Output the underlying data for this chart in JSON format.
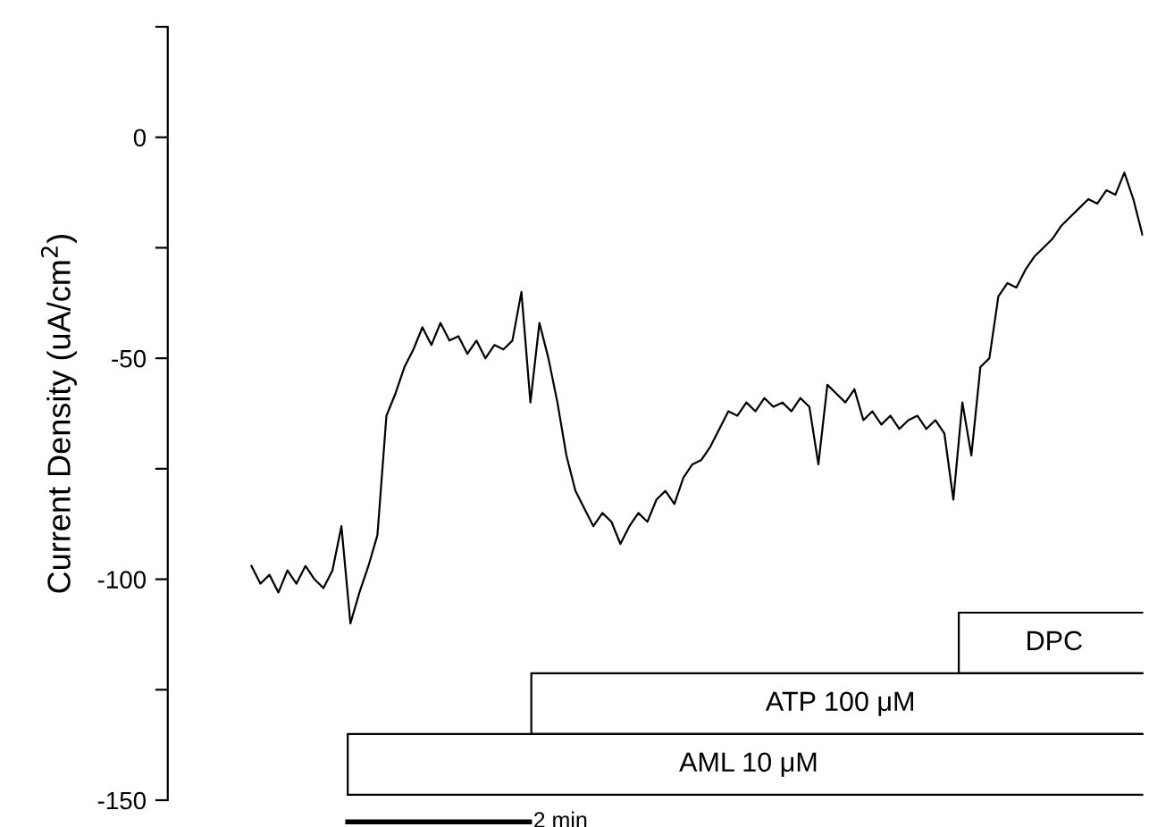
{
  "chart_data": {
    "type": "line",
    "ylabel": "Current Density (uA/cm$^{2}$)",
    "categories": [
      null,
      null,
      null,
      null,
      null,
      null,
      null,
      null,
      null,
      null,
      null,
      null,
      null,
      null,
      null,
      null,
      null,
      null,
      null,
      null,
      null,
      null,
      null,
      null,
      null,
      null,
      null,
      null,
      null,
      null,
      null,
      null,
      null,
      null,
      null,
      null,
      null,
      null,
      null,
      null,
      null,
      null,
      null,
      null,
      null,
      null,
      null,
      null,
      null,
      null,
      null,
      null,
      null,
      null,
      null,
      null,
      null,
      null,
      null,
      null,
      null,
      null,
      null,
      null,
      null,
      null,
      null,
      null,
      null,
      null,
      null,
      null,
      null,
      null,
      null,
      null,
      null,
      null,
      null,
      null,
      null,
      null,
      null,
      null,
      null,
      null,
      null,
      null,
      null,
      null,
      null,
      null,
      null,
      null,
      null,
      null,
      null,
      null,
      null,
      null
    ],
    "series": [
      {
        "color": "#000000",
        "values": [
          -97,
          -101,
          -99,
          -103,
          -98,
          -101,
          -97,
          -100,
          -102,
          -98,
          -88,
          -110,
          -103,
          -97,
          -90,
          -63,
          -58,
          -52,
          -48,
          -43,
          -47,
          -42,
          -46,
          -45,
          -49,
          -46,
          -50,
          -47,
          -48,
          -46,
          -35,
          -60,
          -42,
          -50,
          -60,
          -72,
          -80,
          -84,
          -88,
          -85,
          -87,
          -92,
          -88,
          -85,
          -87,
          -82,
          -80,
          -83,
          -77,
          -74,
          -73,
          -70,
          -66,
          -62,
          -63,
          -60,
          -62,
          -59,
          -61,
          -60,
          -62,
          -59,
          -61,
          -74,
          -56,
          -58,
          -60,
          -57,
          -64,
          -62,
          -65,
          -63,
          -66,
          -64,
          -63,
          -66,
          -64,
          -67,
          -82,
          -60,
          -72,
          -52,
          -50,
          -36,
          -33,
          -34,
          -30,
          -27,
          -25,
          -23,
          -20,
          -18,
          -16,
          -14,
          -15,
          -12,
          -13,
          -8,
          -14,
          -22
        ]
      }
    ],
    "ylim": [
      -150,
      25
    ],
    "yticks": [
      0,
      -50,
      -100,
      -150
    ],
    "tick_labels": "y",
    "grid": false,
    "legend": false,
    "marker": "none",
    "line_style": "solid",
    "annotations": [
      "DPC",
      "ATP 100 μM",
      "AML 10 μM",
      "2 min"
    ]
  }
}
